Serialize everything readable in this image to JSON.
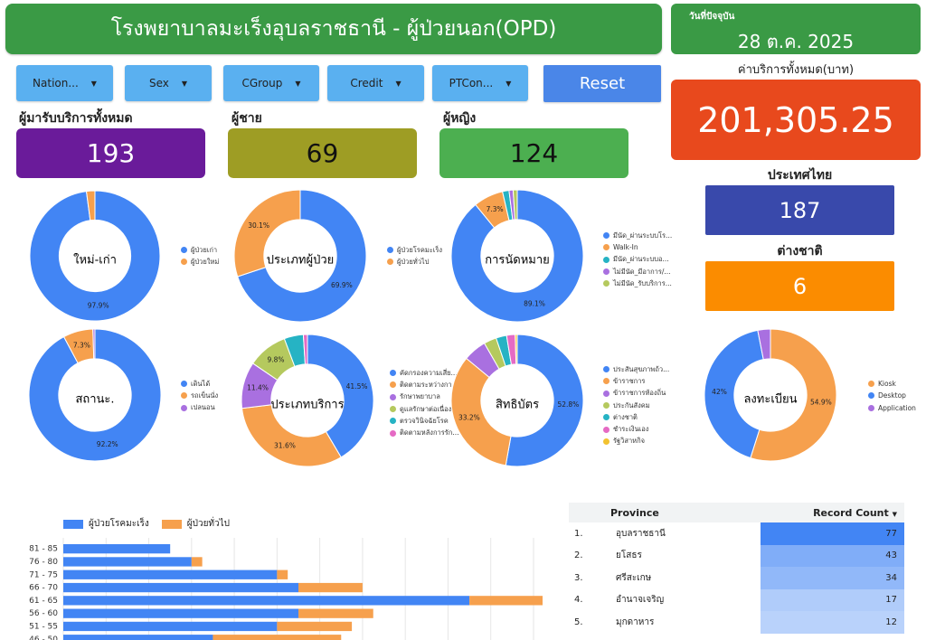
{
  "header": {
    "title": "โรงพยาบาลมะเร็งอุบลราชธานี - ผู้ป่วยนอก(OPD)",
    "date_label": "วันที่ปัจจุบัน",
    "date_value": "28 ต.ค. 2025"
  },
  "filters": [
    "Nation...",
    "Sex",
    "CGroup",
    "Credit",
    "PTCon..."
  ],
  "reset_label": "Reset",
  "kpis": {
    "total_label": "ผู้มารับบริการทั้งหมด",
    "total_value": "193",
    "male_label": "ผู้ชาย",
    "male_value": "69",
    "female_label": "ผู้หญิง",
    "female_value": "124",
    "cost_label": "ค่าบริการทั้งหมด(บาท)",
    "cost_value": "201,305.25",
    "thai_label": "ประเทศไทย",
    "thai_value": "187",
    "foreign_label": "ต่างชาติ",
    "foreign_value": "6"
  },
  "colors": {
    "blue": "#4285f4",
    "orange": "#f6a04d",
    "purple": "#a970e0",
    "lime": "#b5c95e",
    "teal": "#26b3c4",
    "pink": "#e56ac4",
    "yellow": "#f2c230",
    "red_orange": "#e8491d",
    "green": "#3a9a45",
    "title_purple": "#6a1b9a",
    "olive": "#9e9d24",
    "kpi_green": "#4caf50",
    "navy": "#3949ab",
    "amber": "#fb8c00"
  },
  "donuts": [
    {
      "center": "ใหม่-เก่า",
      "legend": [
        "ผู้ป่วยเก่า",
        "ผู้ป่วยใหม่"
      ],
      "values": [
        97.9,
        2.1
      ],
      "colors": [
        "#4285f4",
        "#f6a04d"
      ],
      "labels": [
        "97.9%",
        ""
      ]
    },
    {
      "center": "ประเภทผู้ป่วย",
      "legend": [
        "ผู้ป่วยโรคมะเร็ง",
        "ผู้ป่วยทั่วไป"
      ],
      "values": [
        69.9,
        30.1
      ],
      "colors": [
        "#4285f4",
        "#f6a04d"
      ],
      "labels": [
        "69.9%",
        "30.1%"
      ]
    },
    {
      "center": "การนัดหมาย",
      "legend": [
        "มีนัด_ผ่านระบบโร...",
        "Walk-In",
        "มีนัด_ผ่านระบบอ...",
        "ไม่มีนัด_มีอาการ/...",
        "ไม่มีนัด_รับบริการ..."
      ],
      "values": [
        89.1,
        7.3,
        1.6,
        1.0,
        1.0
      ],
      "colors": [
        "#4285f4",
        "#f6a04d",
        "#26b3c4",
        "#a970e0",
        "#b5c95e"
      ],
      "labels": [
        "89.1%",
        "7.3%",
        "",
        "",
        ""
      ]
    },
    {
      "center": "สถานะ.",
      "legend": [
        "เดินได้",
        "รถเข็นนั่ง",
        "เปลนอน"
      ],
      "values": [
        92.2,
        7.3,
        0.5
      ],
      "colors": [
        "#4285f4",
        "#f6a04d",
        "#a970e0"
      ],
      "labels": [
        "92.2%",
        "7.3%",
        ""
      ]
    },
    {
      "center": "ประเภทบริการ",
      "legend": [
        "คัดกรองความเสี่ย...",
        "ติดตามระหว่างกา...",
        "รักษาพยาบาล",
        "ดูแลรักษาต่อเนื่อง",
        "ตรวจวินิจฉัยโรค",
        "ติดตามหลังการรัก..."
      ],
      "values": [
        41.5,
        31.6,
        11.4,
        9.8,
        4.7,
        1.0
      ],
      "colors": [
        "#4285f4",
        "#f6a04d",
        "#a970e0",
        "#b5c95e",
        "#26b3c4",
        "#e56ac4"
      ],
      "labels": [
        "41.5%",
        "31.6%",
        "11.4%",
        "9.8%",
        "",
        ""
      ]
    },
    {
      "center": "สิทธิบัตร",
      "legend": [
        "ประสันสุขภาพถ้ว...",
        "ข้าราชการ",
        "ข้าราชการท้องถิ่น",
        "ประกันสังคม",
        "ต่างชาติ",
        "ชำระเงินเอง",
        "รัฐวิสาหกิจ"
      ],
      "values": [
        52.8,
        33.2,
        5.7,
        3.1,
        2.6,
        2.1,
        0.5
      ],
      "colors": [
        "#4285f4",
        "#f6a04d",
        "#a970e0",
        "#b5c95e",
        "#26b3c4",
        "#e56ac4",
        "#f2c230"
      ],
      "labels": [
        "52.8%",
        "33.2%",
        "",
        "",
        "",
        "",
        ""
      ]
    },
    {
      "center": "ลงทะเบียน",
      "legend": [
        "Kiosk",
        "Desktop",
        "Application"
      ],
      "values": [
        54.9,
        42,
        3.1
      ],
      "colors": [
        "#f6a04d",
        "#4285f4",
        "#a970e0"
      ],
      "labels": [
        "54.9%",
        "42%",
        ""
      ]
    }
  ],
  "chart_data": {
    "type": "bar",
    "orientation": "horizontal",
    "stacked": true,
    "categories": [
      "81 - 85",
      "76 - 80",
      "71 - 75",
      "66 - 70",
      "61 - 65",
      "56 - 60",
      "51 - 55",
      "46 - 50"
    ],
    "series": [
      {
        "name": "ผู้ป่วยโรคมะเร็ง",
        "values": [
          5,
          6,
          10,
          11,
          19,
          11,
          10,
          7
        ],
        "color": "#4285f4"
      },
      {
        "name": "ผู้ป่วยทั่วไป",
        "values": [
          0,
          0.5,
          0.5,
          3,
          3.5,
          3.5,
          3.5,
          6
        ],
        "color": "#f6a04d"
      }
    ],
    "xlim": [
      0,
      22
    ],
    "grid": true,
    "legend": "top-left"
  },
  "province_table": {
    "col_province": "Province",
    "col_count": "Record Count",
    "sort_icon": "sort-desc-icon",
    "rows": [
      {
        "rank": "1.",
        "name": "อุบลราชธานี",
        "count": "77",
        "value": 77
      },
      {
        "rank": "2.",
        "name": "ยโสธร",
        "count": "43",
        "value": 43
      },
      {
        "rank": "3.",
        "name": "ศรีสะเกษ",
        "count": "34",
        "value": 34
      },
      {
        "rank": "4.",
        "name": "อำนาจเจริญ",
        "count": "17",
        "value": 17
      },
      {
        "rank": "5.",
        "name": "มุกดาหาร",
        "count": "12",
        "value": 12
      }
    ]
  }
}
